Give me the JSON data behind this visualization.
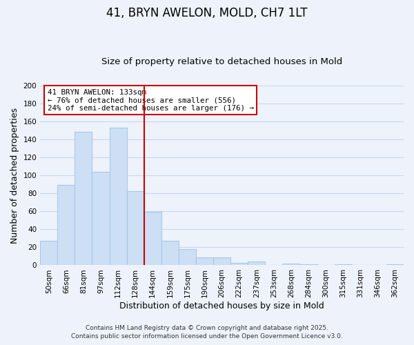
{
  "title": "41, BRYN AWELON, MOLD, CH7 1LT",
  "subtitle": "Size of property relative to detached houses in Mold",
  "xlabel": "Distribution of detached houses by size in Mold",
  "ylabel": "Number of detached properties",
  "categories": [
    "50sqm",
    "66sqm",
    "81sqm",
    "97sqm",
    "112sqm",
    "128sqm",
    "144sqm",
    "159sqm",
    "175sqm",
    "190sqm",
    "206sqm",
    "222sqm",
    "237sqm",
    "253sqm",
    "268sqm",
    "284sqm",
    "300sqm",
    "315sqm",
    "331sqm",
    "346sqm",
    "362sqm"
  ],
  "values": [
    27,
    89,
    148,
    104,
    153,
    82,
    59,
    27,
    18,
    9,
    9,
    3,
    4,
    0,
    2,
    1,
    0,
    1,
    0,
    0,
    1
  ],
  "bar_color": "#cddff5",
  "bar_edge_color": "#a8c8e8",
  "grid_color": "#c8d8ee",
  "vline_x": 5.5,
  "vline_color": "#cc0000",
  "annotation_title": "41 BRYN AWELON: 133sqm",
  "annotation_line1": "← 76% of detached houses are smaller (556)",
  "annotation_line2": "24% of semi-detached houses are larger (176) →",
  "annotation_box_color": "#ffffff",
  "annotation_box_edge": "#cc0000",
  "footer1": "Contains HM Land Registry data © Crown copyright and database right 2025.",
  "footer2": "Contains public sector information licensed under the Open Government Licence v3.0.",
  "ylim": [
    0,
    200
  ],
  "yticks": [
    0,
    20,
    40,
    60,
    80,
    100,
    120,
    140,
    160,
    180,
    200
  ],
  "background_color": "#eef2fb",
  "title_fontsize": 12,
  "subtitle_fontsize": 9.5,
  "axis_label_fontsize": 9,
  "tick_fontsize": 7.5,
  "footer_fontsize": 6.5,
  "annotation_fontsize": 7.8
}
